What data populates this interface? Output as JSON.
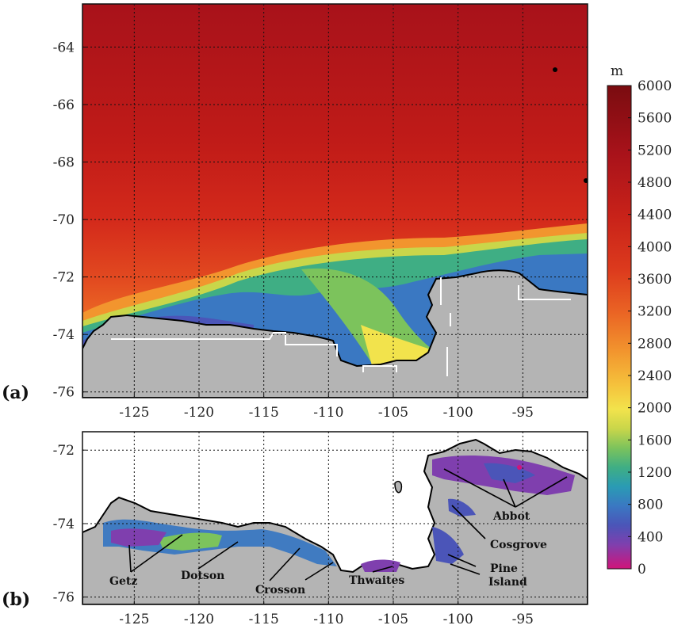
{
  "panel_a": {
    "label": "(a)",
    "x_ticks": [
      "-125",
      "-120",
      "-115",
      "-110",
      "-105",
      "-100",
      "-95"
    ],
    "y_ticks": [
      "-64",
      "-66",
      "-68",
      "-70",
      "-72",
      "-74",
      "-76"
    ]
  },
  "panel_b": {
    "label": "(b)",
    "x_ticks": [
      "-125",
      "-120",
      "-115",
      "-110",
      "-105",
      "-100",
      "-95"
    ],
    "y_ticks": [
      "-72",
      "-74",
      "-76"
    ],
    "ice_shelves": [
      "Getz",
      "Dotson",
      "Crosson",
      "Thwaites",
      "Pine Island",
      "Cosgrove",
      "Abbot"
    ],
    "label_text": {
      "getz": "Getz",
      "dotson": "Dotson",
      "crosson": "Crosson",
      "thwaites": "Thwaites",
      "pine_line1": "Pine",
      "pine_line2": "Island",
      "cosgrove": "Cosgrove",
      "abbot": "Abbot"
    }
  },
  "colorbar": {
    "unit": "m",
    "min": 0,
    "max": 6000,
    "ticks": [
      "6000",
      "5600",
      "5200",
      "4800",
      "4400",
      "4000",
      "3600",
      "3200",
      "2800",
      "2400",
      "2000",
      "1600",
      "1200",
      "800",
      "400",
      "0"
    ],
    "stops": [
      "#d1147a",
      "#7f3fae",
      "#4b55b8",
      "#3a78c2",
      "#2a9bb4",
      "#3fae84",
      "#7cc35c",
      "#c9d64a",
      "#f2e34c",
      "#f5c23c",
      "#f2952e",
      "#ea6424",
      "#dc3a1d",
      "#c82219",
      "#a8121a",
      "#8a0e12"
    ]
  },
  "colors": {
    "land": "#b4b4b4",
    "ocean_deep": "#c82219",
    "grounding_line": "#000000",
    "transect": "#ffffff"
  },
  "chart_data": {
    "type": "heatmap",
    "xlabel": "",
    "ylabel": "",
    "panel_a": {
      "xlim": [
        -129,
        -90
      ],
      "ylim": [
        -76.2,
        -62.5
      ]
    },
    "panel_b": {
      "xlim": [
        -129,
        -90
      ],
      "ylim": [
        -76.2,
        -71.5
      ]
    },
    "colorbar_range": [
      0,
      6000
    ],
    "colorbar_unit": "m"
  }
}
